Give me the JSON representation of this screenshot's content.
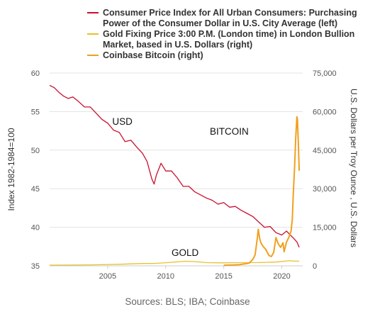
{
  "chart_data": {
    "type": "line",
    "legend": [
      {
        "series": "cpi",
        "lines": [
          "Consumer Price Index for All Urban Consumers: Purchasing",
          "Power of the Consumer Dollar in U.S. City Average (left)"
        ]
      },
      {
        "series": "gold",
        "lines": [
          "Gold Fixing Price 3:00 P.M. (London time) in London Bullion",
          "Market, based in U.S. Dollars (right)"
        ]
      },
      {
        "series": "btc",
        "lines": [
          "Coinbase Bitcoin (right)"
        ]
      }
    ],
    "ylabel_left": "Index 1982-1984=100",
    "ylabel_right": "U.S. Dollars per Troy Ounce , U.S. Dollars",
    "xlim": [
      2000.0,
      2021.8
    ],
    "ylim_left": [
      35,
      60
    ],
    "ylim_right": [
      0,
      75000
    ],
    "x_ticks": [
      2005,
      2010,
      2015,
      2020
    ],
    "y_ticks_left": [
      35,
      40,
      45,
      50,
      55,
      60
    ],
    "y_ticks_right": [
      "0",
      "15,000",
      "30,000",
      "45,000",
      "60,000",
      "75,000"
    ],
    "y_ticks_right_values": [
      0,
      15000,
      30000,
      45000,
      60000,
      75000
    ],
    "grid": "horizontal",
    "annotations": [
      {
        "text": "USD",
        "x": 2005.4,
        "y_left": 53.3
      },
      {
        "text": "BITCOIN",
        "x": 2013.8,
        "y_left": 52.0
      },
      {
        "text": "GOLD",
        "x": 2010.5,
        "y_left": 36.3
      }
    ],
    "source": "Sources: BLS; IBA; Coinbase",
    "series": [
      {
        "key": "cpi",
        "color": "#c8102e",
        "axis": "left",
        "points": [
          [
            2000.0,
            58.4
          ],
          [
            2000.4,
            58.1
          ],
          [
            2000.8,
            57.5
          ],
          [
            2001.2,
            57.0
          ],
          [
            2001.6,
            56.7
          ],
          [
            2002.0,
            56.9
          ],
          [
            2002.5,
            56.3
          ],
          [
            2003.0,
            55.6
          ],
          [
            2003.5,
            55.6
          ],
          [
            2004.0,
            54.8
          ],
          [
            2004.5,
            54.0
          ],
          [
            2005.0,
            53.5
          ],
          [
            2005.5,
            52.6
          ],
          [
            2006.0,
            52.3
          ],
          [
            2006.5,
            51.1
          ],
          [
            2007.0,
            51.3
          ],
          [
            2007.5,
            50.4
          ],
          [
            2008.0,
            49.6
          ],
          [
            2008.4,
            48.5
          ],
          [
            2008.6,
            47.4
          ],
          [
            2008.8,
            46.3
          ],
          [
            2009.0,
            45.6
          ],
          [
            2009.2,
            46.8
          ],
          [
            2009.6,
            48.3
          ],
          [
            2010.0,
            47.3
          ],
          [
            2010.5,
            47.3
          ],
          [
            2011.0,
            46.4
          ],
          [
            2011.5,
            45.3
          ],
          [
            2012.0,
            45.3
          ],
          [
            2012.5,
            44.6
          ],
          [
            2013.0,
            44.2
          ],
          [
            2013.5,
            43.8
          ],
          [
            2014.0,
            43.5
          ],
          [
            2014.5,
            43.0
          ],
          [
            2015.0,
            43.2
          ],
          [
            2015.5,
            42.6
          ],
          [
            2016.0,
            42.7
          ],
          [
            2016.5,
            42.2
          ],
          [
            2017.0,
            41.8
          ],
          [
            2017.5,
            41.4
          ],
          [
            2018.0,
            40.7
          ],
          [
            2018.5,
            40.0
          ],
          [
            2019.0,
            40.1
          ],
          [
            2019.5,
            39.3
          ],
          [
            2020.0,
            39.0
          ],
          [
            2020.4,
            39.5
          ],
          [
            2020.8,
            38.9
          ],
          [
            2021.0,
            38.6
          ],
          [
            2021.3,
            38.1
          ],
          [
            2021.5,
            37.4
          ]
        ]
      },
      {
        "key": "gold",
        "color": "#e6c229",
        "axis": "right",
        "points": [
          [
            2000.0,
            280
          ],
          [
            2002.0,
            310
          ],
          [
            2004.0,
            400
          ],
          [
            2006.0,
            600
          ],
          [
            2008.0,
            900
          ],
          [
            2009.0,
            950
          ],
          [
            2010.0,
            1200
          ],
          [
            2011.0,
            1550
          ],
          [
            2011.7,
            1800
          ],
          [
            2012.5,
            1650
          ],
          [
            2013.5,
            1250
          ],
          [
            2015.0,
            1150
          ],
          [
            2016.0,
            1250
          ],
          [
            2018.0,
            1280
          ],
          [
            2019.5,
            1450
          ],
          [
            2020.6,
            1950
          ],
          [
            2021.5,
            1800
          ]
        ]
      },
      {
        "key": "btc",
        "color": "#f0a020",
        "axis": "right",
        "points": [
          [
            2015.0,
            250
          ],
          [
            2015.8,
            350
          ],
          [
            2016.3,
            450
          ],
          [
            2016.8,
            750
          ],
          [
            2017.2,
            1100
          ],
          [
            2017.5,
            2500
          ],
          [
            2017.7,
            4300
          ],
          [
            2017.9,
            11000
          ],
          [
            2017.97,
            14200
          ],
          [
            2018.1,
            10500
          ],
          [
            2018.2,
            9000
          ],
          [
            2018.4,
            7500
          ],
          [
            2018.6,
            6500
          ],
          [
            2018.9,
            4000
          ],
          [
            2019.1,
            3600
          ],
          [
            2019.3,
            5200
          ],
          [
            2019.5,
            11000
          ],
          [
            2019.7,
            8500
          ],
          [
            2019.9,
            7200
          ],
          [
            2020.1,
            9000
          ],
          [
            2020.2,
            5500
          ],
          [
            2020.4,
            9200
          ],
          [
            2020.6,
            11000
          ],
          [
            2020.8,
            13500
          ],
          [
            2020.9,
            18000
          ],
          [
            2021.0,
            29000
          ],
          [
            2021.1,
            38000
          ],
          [
            2021.2,
            50000
          ],
          [
            2021.3,
            58000
          ],
          [
            2021.35,
            57000
          ],
          [
            2021.42,
            48000
          ],
          [
            2021.5,
            37000
          ]
        ]
      }
    ]
  }
}
